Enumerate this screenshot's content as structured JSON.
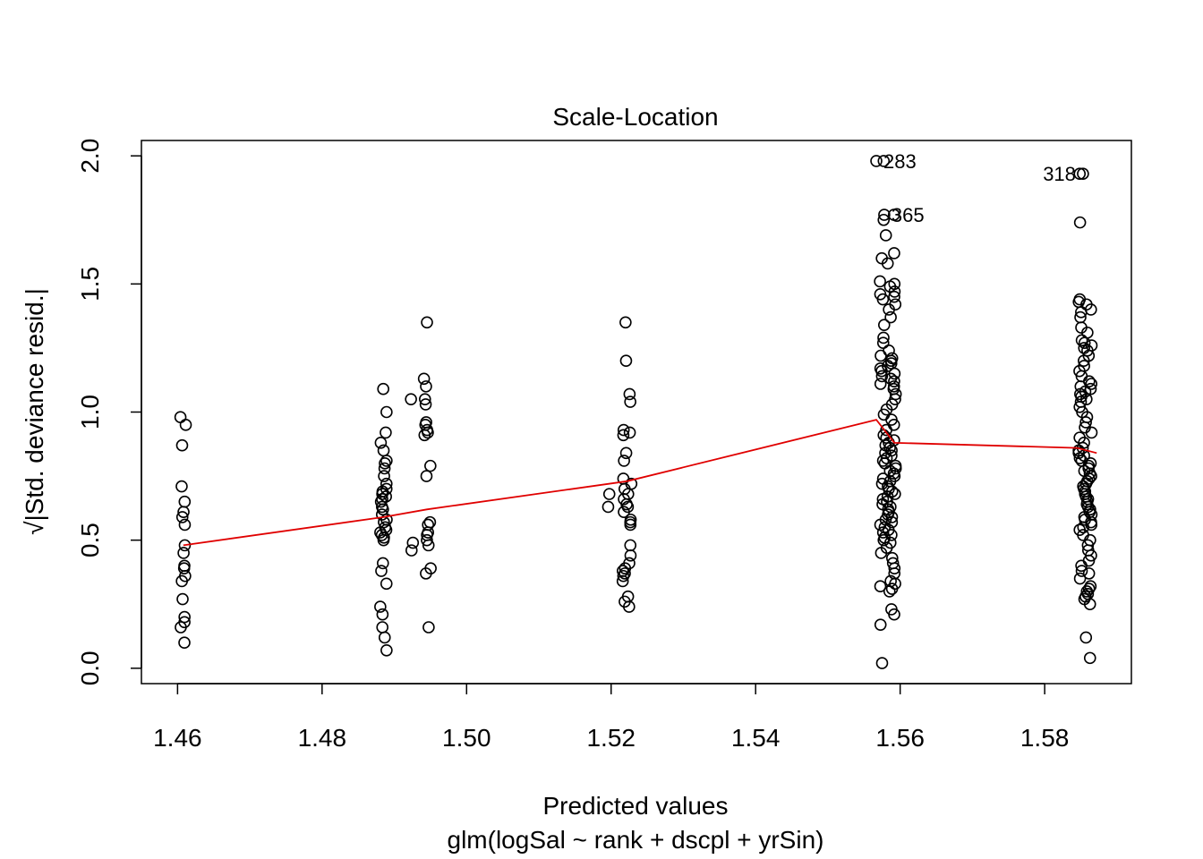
{
  "chart_data": {
    "type": "scatter",
    "title": "Scale-Location",
    "xlabel": "Predicted values",
    "subtitle": "glm(logSal ~ rank + dscpl + yrSin)",
    "ylabel": "√|Std. deviance resid.|",
    "xlim": [
      1.455,
      1.592
    ],
    "ylim": [
      -0.06,
      2.06
    ],
    "x_ticks": [
      1.46,
      1.48,
      1.5,
      1.52,
      1.54,
      1.56,
      1.58
    ],
    "x_tick_labels": [
      "1.46",
      "1.48",
      "1.50",
      "1.52",
      "1.54",
      "1.56",
      "1.58"
    ],
    "y_ticks": [
      0.0,
      0.5,
      1.0,
      1.5,
      2.0
    ],
    "y_tick_labels": [
      "0.0",
      "0.5",
      "1.0",
      "1.5",
      "2.0"
    ],
    "grid": false,
    "colors": {
      "points": "#000000",
      "smooth": "#e00000",
      "axes": "#000000"
    },
    "groups": [
      {
        "x": 1.4608,
        "jitter": 0.0004,
        "values": [
          0.98,
          0.95,
          0.87,
          0.71,
          0.65,
          0.61,
          0.59,
          0.56,
          0.48,
          0.45,
          0.4,
          0.39,
          0.36,
          0.34,
          0.27,
          0.2,
          0.18,
          0.16,
          0.1
        ]
      },
      {
        "x": 1.4885,
        "jitter": 0.0005,
        "values": [
          1.09,
          1.0,
          0.92,
          0.88,
          0.85,
          0.81,
          0.8,
          0.78,
          0.75,
          0.72,
          0.7,
          0.69,
          0.68,
          0.67,
          0.66,
          0.65,
          0.63,
          0.62,
          0.6,
          0.58,
          0.57,
          0.55,
          0.54,
          0.53,
          0.52,
          0.51,
          0.5,
          0.41,
          0.38,
          0.33,
          0.24,
          0.21,
          0.16,
          0.12,
          0.07
        ]
      },
      {
        "x": 1.4945,
        "jitter": 0.0006,
        "values": [
          1.35,
          1.13,
          1.1,
          1.05,
          1.03,
          0.96,
          0.95,
          0.93,
          0.92,
          0.91,
          0.79,
          0.75,
          0.57,
          0.56,
          0.53,
          0.52,
          0.5,
          0.48,
          0.39,
          0.37,
          0.16
        ]
      },
      {
        "x": 1.4925,
        "jitter": 0.0004,
        "values": [
          1.05,
          0.49,
          0.46
        ]
      },
      {
        "x": 1.5222,
        "jitter": 0.0006,
        "values": [
          1.35,
          1.2,
          1.07,
          1.04,
          0.93,
          0.92,
          0.91,
          0.84,
          0.81,
          0.74,
          0.72,
          0.7,
          0.68,
          0.66,
          0.64,
          0.63,
          0.61,
          0.58,
          0.57,
          0.56,
          0.48,
          0.44,
          0.41,
          0.39,
          0.38,
          0.37,
          0.36,
          0.34,
          0.28,
          0.26,
          0.24
        ]
      },
      {
        "x": 1.5196,
        "jitter": 0.0004,
        "values": [
          0.63,
          0.68
        ]
      },
      {
        "x": 1.5583,
        "jitter": 0.0011,
        "values": [
          1.98,
          1.77,
          1.75,
          1.69,
          1.62,
          1.6,
          1.58,
          1.51,
          1.5,
          1.49,
          1.47,
          1.46,
          1.45,
          1.44,
          1.42,
          1.4,
          1.37,
          1.34,
          1.29,
          1.27,
          1.24,
          1.22,
          1.21,
          1.2,
          1.19,
          1.18,
          1.17,
          1.16,
          1.15,
          1.14,
          1.13,
          1.12,
          1.11,
          1.1,
          1.09,
          1.07,
          1.05,
          1.03,
          1.01,
          0.99,
          0.97,
          0.95,
          0.93,
          0.91,
          0.9,
          0.89,
          0.88,
          0.87,
          0.86,
          0.85,
          0.84,
          0.83,
          0.82,
          0.81,
          0.8,
          0.79,
          0.78,
          0.77,
          0.76,
          0.75,
          0.74,
          0.73,
          0.72,
          0.71,
          0.7,
          0.69,
          0.68,
          0.67,
          0.66,
          0.65,
          0.64,
          0.63,
          0.62,
          0.61,
          0.6,
          0.59,
          0.58,
          0.57,
          0.56,
          0.55,
          0.54,
          0.53,
          0.52,
          0.51,
          0.5,
          0.49,
          0.47,
          0.45,
          0.43,
          0.41,
          0.39,
          0.37,
          0.34,
          0.33,
          0.32,
          0.31,
          0.3,
          0.23,
          0.21,
          0.17,
          0.02
        ]
      },
      {
        "x": 1.5856,
        "jitter": 0.0009,
        "values": [
          1.93,
          1.74,
          1.44,
          1.43,
          1.42,
          1.4,
          1.39,
          1.37,
          1.33,
          1.31,
          1.28,
          1.27,
          1.26,
          1.25,
          1.24,
          1.22,
          1.2,
          1.18,
          1.16,
          1.14,
          1.12,
          1.11,
          1.1,
          1.09,
          1.08,
          1.07,
          1.06,
          1.05,
          1.04,
          1.02,
          1.0,
          0.98,
          0.96,
          0.94,
          0.92,
          0.9,
          0.88,
          0.86,
          0.85,
          0.84,
          0.83,
          0.82,
          0.81,
          0.8,
          0.79,
          0.78,
          0.77,
          0.76,
          0.75,
          0.74,
          0.73,
          0.72,
          0.71,
          0.7,
          0.69,
          0.68,
          0.67,
          0.66,
          0.65,
          0.64,
          0.63,
          0.62,
          0.61,
          0.6,
          0.59,
          0.58,
          0.57,
          0.56,
          0.55,
          0.54,
          0.52,
          0.5,
          0.48,
          0.46,
          0.44,
          0.42,
          0.4,
          0.38,
          0.37,
          0.35,
          0.32,
          0.31,
          0.3,
          0.29,
          0.28,
          0.27,
          0.25,
          0.12,
          0.04
        ]
      }
    ],
    "labeled_points": [
      {
        "label": "283",
        "x": 1.5567,
        "y": 1.98,
        "side": "right"
      },
      {
        "label": "365",
        "x": 1.5578,
        "y": 1.77,
        "side": "right"
      },
      {
        "label": "318",
        "x": 1.5853,
        "y": 1.93,
        "side": "left"
      }
    ],
    "smooth_line": {
      "x": [
        1.4608,
        1.4885,
        1.4945,
        1.5222,
        1.5567,
        1.5592,
        1.5845,
        1.5872
      ],
      "y": [
        0.48,
        0.59,
        0.62,
        0.73,
        0.97,
        0.88,
        0.86,
        0.84
      ]
    }
  }
}
